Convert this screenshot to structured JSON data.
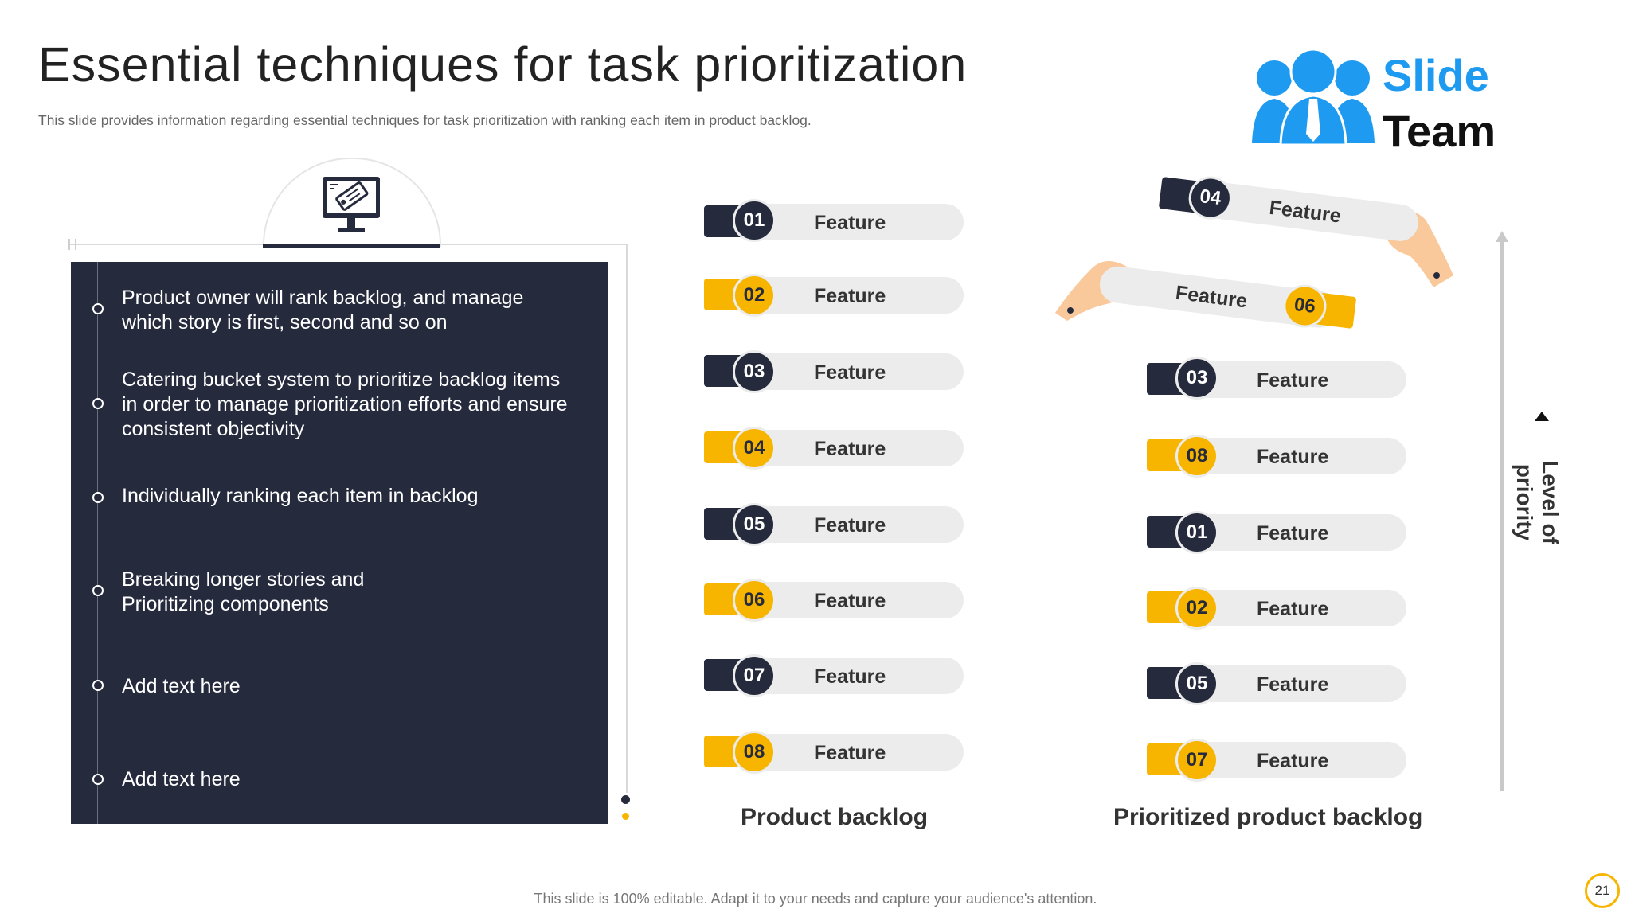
{
  "header": {
    "title": "Essential techniques for task prioritization",
    "subtitle": "This slide provides information regarding essential techniques for task prioritization with ranking each item in product backlog."
  },
  "logo": {
    "line1": "Slide",
    "line2": "Team",
    "icon": "people-group-icon",
    "brand_color": "#1e9bf0"
  },
  "panel": {
    "icon": "monitor-tag-icon",
    "bullets": [
      "Product owner will rank backlog, and manage which story is first, second and so on",
      "Catering bucket system to prioritize backlog items in order to manage prioritization efforts and ensure consistent objectivity",
      "Individually  ranking each item in backlog",
      "Breaking longer stories and Prioritizing components",
      "Add text here",
      "Add text here"
    ]
  },
  "product_backlog": {
    "label": "Product backlog",
    "items": [
      {
        "num": "01",
        "text": "Feature"
      },
      {
        "num": "02",
        "text": "Feature"
      },
      {
        "num": "03",
        "text": "Feature"
      },
      {
        "num": "04",
        "text": "Feature"
      },
      {
        "num": "05",
        "text": "Feature"
      },
      {
        "num": "06",
        "text": "Feature"
      },
      {
        "num": "07",
        "text": "Feature"
      },
      {
        "num": "08",
        "text": "Feature"
      }
    ]
  },
  "prioritized_backlog": {
    "label": "Prioritized product backlog",
    "moving": [
      {
        "num": "04",
        "text": "Feature"
      },
      {
        "num": "06",
        "text": "Feature"
      }
    ],
    "items": [
      {
        "num": "03",
        "text": "Feature"
      },
      {
        "num": "08",
        "text": "Feature"
      },
      {
        "num": "01",
        "text": "Feature"
      },
      {
        "num": "02",
        "text": "Feature"
      },
      {
        "num": "05",
        "text": "Feature"
      },
      {
        "num": "07",
        "text": "Feature"
      }
    ]
  },
  "axis": {
    "label": "Level of priority"
  },
  "footer": {
    "text": "This slide is 100% editable. Adapt it to your needs and capture your audience's attention."
  },
  "page_number": "21",
  "colors": {
    "dark": "#252a3d",
    "accent": "#f7b500",
    "pill": "#ececec"
  }
}
